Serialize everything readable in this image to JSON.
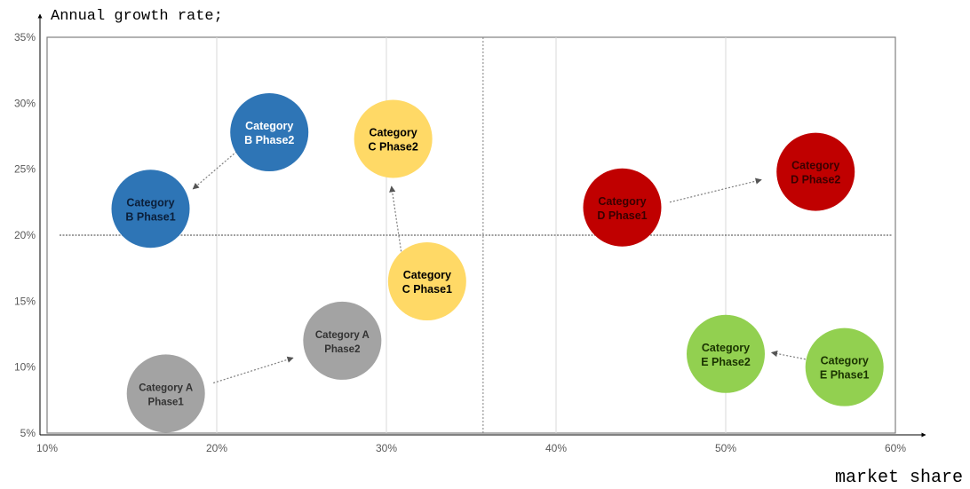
{
  "chart_data": {
    "type": "scatter",
    "title": "",
    "ylabel": "Annual growth rate;",
    "xlabel": "market share",
    "xlim": [
      10,
      60
    ],
    "ylim": [
      5,
      35
    ],
    "x_ticks": [
      10,
      20,
      30,
      40,
      50,
      60
    ],
    "y_ticks": [
      5,
      10,
      15,
      20,
      25,
      30,
      35
    ],
    "tick_suffix": "%",
    "grid": "vertical",
    "reference_lines": {
      "x": 35.7,
      "y": 20
    },
    "bubbles": [
      {
        "label_line1": "Category A",
        "label_line2": "Phase1",
        "x": 17,
        "y": 8,
        "color": "#a3a3a3",
        "text_color": "#333333"
      },
      {
        "label_line1": "Category A",
        "label_line2": "Phase2",
        "x": 27.4,
        "y": 12,
        "color": "#a3a3a3",
        "text_color": "#333333"
      },
      {
        "label_line1": "Category",
        "label_line2": "B Phase1",
        "x": 16.1,
        "y": 22,
        "color": "#2e75b6",
        "text_color": "#0b1f3a"
      },
      {
        "label_line1": "Category",
        "label_line2": "B Phase2",
        "x": 23.1,
        "y": 27.8,
        "color": "#2e75b6",
        "text_color": "#ffffff"
      },
      {
        "label_line1": "Category",
        "label_line2": "C Phase1",
        "x": 32.4,
        "y": 16.5,
        "color": "#ffd966",
        "text_color": "#000000"
      },
      {
        "label_line1": "Category",
        "label_line2": "C Phase2",
        "x": 30.4,
        "y": 27.3,
        "color": "#ffd966",
        "text_color": "#000000"
      },
      {
        "label_line1": "Category",
        "label_line2": "D Phase1",
        "x": 43.9,
        "y": 22.1,
        "color": "#c00000",
        "text_color": "#3a0000"
      },
      {
        "label_line1": "Category",
        "label_line2": "D Phase2",
        "x": 55.3,
        "y": 24.8,
        "color": "#c00000",
        "text_color": "#3a0000"
      },
      {
        "label_line1": "Category",
        "label_line2": "E Phase1",
        "x": 57,
        "y": 10,
        "color": "#92d050",
        "text_color": "#1a3300"
      },
      {
        "label_line1": "Category",
        "label_line2": "E Phase2",
        "x": 50,
        "y": 11,
        "color": "#92d050",
        "text_color": "#1a3300"
      }
    ],
    "arrows": [
      {
        "from": [
          19.8,
          8.8
        ],
        "to": [
          24.5,
          10.7
        ]
      },
      {
        "from": [
          21.5,
          26.7
        ],
        "to": [
          18.6,
          23.5
        ]
      },
      {
        "from": [
          30.9,
          18.5
        ],
        "to": [
          30.3,
          23.7
        ]
      },
      {
        "from": [
          46.7,
          22.5
        ],
        "to": [
          52.1,
          24.2
        ]
      },
      {
        "from": [
          54.7,
          10.6
        ],
        "to": [
          52.7,
          11.1
        ]
      }
    ]
  }
}
